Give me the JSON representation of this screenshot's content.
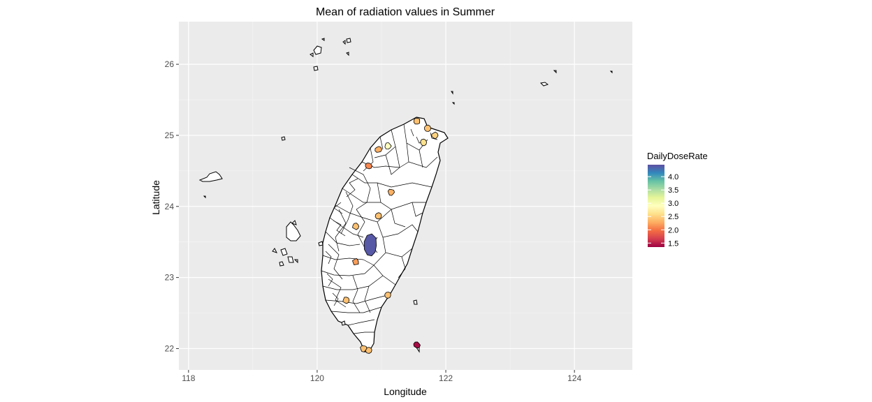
{
  "chart_data": {
    "type": "choropleth",
    "title": "Mean of radiation values in Summer",
    "xlabel": "Longitude",
    "ylabel": "Latitude",
    "xlim": [
      117.85,
      124.9
    ],
    "ylim": [
      21.7,
      26.6
    ],
    "x_ticks": [
      118,
      120,
      122,
      124
    ],
    "y_ticks": [
      22,
      23,
      24,
      25,
      26
    ],
    "x_tick_labels": [
      "118",
      "120",
      "122",
      "124"
    ],
    "y_tick_labels": [
      "22",
      "23",
      "24",
      "25",
      "26"
    ],
    "grid": true,
    "panel_background": "#ebebeb",
    "legend": {
      "title": "DailyDoseRate",
      "placement": "right",
      "min": 1.35,
      "max": 4.45,
      "breaks": [
        1.5,
        2.0,
        2.5,
        3.0,
        3.5,
        4.0
      ],
      "break_labels": [
        "1.5",
        "2.0",
        "2.5",
        "3.0",
        "3.5",
        "4.0"
      ],
      "palette": [
        "#9e0142",
        "#d53e4f",
        "#f46d43",
        "#fdae61",
        "#fee08b",
        "#ffffbf",
        "#e6f598",
        "#abdda4",
        "#66c2a5",
        "#3288bd",
        "#5e4fa2"
      ]
    },
    "filled_regions": [
      {
        "lon": 121.55,
        "lat": 25.2,
        "value": 2.4
      },
      {
        "lon": 121.72,
        "lat": 25.1,
        "value": 2.4
      },
      {
        "lon": 121.83,
        "lat": 25.0,
        "value": 2.5
      },
      {
        "lon": 121.65,
        "lat": 24.9,
        "value": 2.6
      },
      {
        "lon": 121.1,
        "lat": 24.85,
        "value": 2.9
      },
      {
        "lon": 120.95,
        "lat": 24.8,
        "value": 2.3
      },
      {
        "lon": 120.8,
        "lat": 24.57,
        "value": 2.1
      },
      {
        "lon": 121.15,
        "lat": 24.2,
        "value": 2.3
      },
      {
        "lon": 120.95,
        "lat": 23.87,
        "value": 2.4
      },
      {
        "lon": 120.6,
        "lat": 23.72,
        "value": 2.4
      },
      {
        "lon": 120.83,
        "lat": 23.45,
        "value": 4.4
      },
      {
        "lon": 120.6,
        "lat": 23.22,
        "value": 2.2
      },
      {
        "lon": 121.1,
        "lat": 22.75,
        "value": 2.4
      },
      {
        "lon": 120.45,
        "lat": 22.68,
        "value": 2.4
      },
      {
        "lon": 120.8,
        "lat": 21.98,
        "value": 2.4
      },
      {
        "lon": 120.72,
        "lat": 22.0,
        "value": 2.4
      },
      {
        "lon": 121.55,
        "lat": 22.05,
        "value": 1.4
      }
    ]
  }
}
